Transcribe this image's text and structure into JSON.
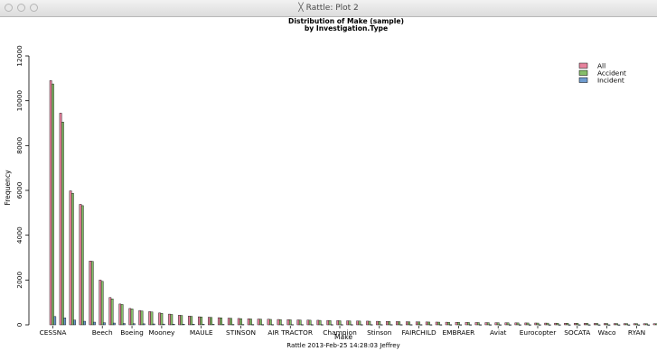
{
  "window": {
    "title": "Rattle: Plot 2",
    "icon": "x11-icon"
  },
  "chart_data": {
    "type": "bar",
    "title": "Distribution of Make (sample)",
    "subtitle": "by Investigation.Type",
    "xlabel": "Make",
    "ylabel": "Frequency",
    "footer": "Rattle 2013-Feb-25 14:28:03 Jeffrey",
    "ylim": [
      0,
      12000
    ],
    "yticks": [
      "0",
      "2000",
      "4000",
      "6000",
      "8000",
      "10000",
      "12000"
    ],
    "legend_position": "top-right",
    "colors": {
      "All": "#e7829d",
      "Accident": "#86be6a",
      "Incident": "#6f9ccf"
    },
    "x_tick_labels": [
      {
        "label": "CESSNA",
        "group": 0
      },
      {
        "label": "Beech",
        "group": 5
      },
      {
        "label": "Boeing",
        "group": 8
      },
      {
        "label": "Mooney",
        "group": 11
      },
      {
        "label": "MAULE",
        "group": 15
      },
      {
        "label": "STINSON",
        "group": 19
      },
      {
        "label": "AIR TRACTOR",
        "group": 24
      },
      {
        "label": "Champion",
        "group": 29
      },
      {
        "label": "Stinson",
        "group": 33
      },
      {
        "label": "FAIRCHILD",
        "group": 37
      },
      {
        "label": "EMBRAER",
        "group": 41
      },
      {
        "label": "Aviat",
        "group": 45
      },
      {
        "label": "Eurocopter",
        "group": 49
      },
      {
        "label": "SOCATA",
        "group": 53
      },
      {
        "label": "Waco",
        "group": 56
      },
      {
        "label": "RYAN",
        "group": 59
      }
    ],
    "series": [
      {
        "name": "All",
        "values": [
          10900,
          9450,
          5980,
          5380,
          2850,
          2000,
          1220,
          930,
          730,
          640,
          590,
          530,
          480,
          430,
          390,
          360,
          340,
          320,
          300,
          285,
          270,
          260,
          250,
          240,
          230,
          220,
          212,
          204,
          196,
          188,
          180,
          172,
          165,
          158,
          151,
          145,
          139,
          133,
          127,
          122,
          117,
          112,
          107,
          103,
          99,
          95,
          91,
          87,
          84,
          81,
          78,
          75,
          72,
          69,
          66,
          63,
          60,
          58,
          56,
          54,
          52,
          50
        ]
      },
      {
        "name": "Accident",
        "values": [
          10750,
          9050,
          5870,
          5320,
          2830,
          1940,
          1160,
          910,
          710,
          620,
          575,
          515,
          465,
          420,
          380,
          350,
          330,
          310,
          290,
          278,
          262,
          253,
          243,
          233,
          224,
          214,
          206,
          198,
          190,
          182,
          175,
          167,
          160,
          153,
          147,
          141,
          135,
          129,
          124,
          119,
          114,
          109,
          104,
          100,
          96,
          92,
          88,
          85,
          82,
          79,
          76,
          73,
          70,
          67,
          64,
          61,
          58,
          56,
          54,
          52,
          50,
          48
        ]
      },
      {
        "name": "Incident",
        "values": [
          370,
          310,
          210,
          160,
          120,
          95,
          80,
          60,
          50,
          45,
          40,
          35,
          32,
          30,
          28,
          26,
          24,
          22,
          20,
          19,
          18,
          17,
          16,
          15,
          14,
          13,
          12,
          12,
          11,
          11,
          10,
          10,
          9,
          9,
          9,
          8,
          8,
          8,
          7,
          7,
          7,
          6,
          6,
          6,
          6,
          5,
          5,
          5,
          5,
          5,
          4,
          4,
          4,
          4,
          4,
          3,
          3,
          3,
          3,
          3,
          3,
          3
        ]
      }
    ]
  }
}
